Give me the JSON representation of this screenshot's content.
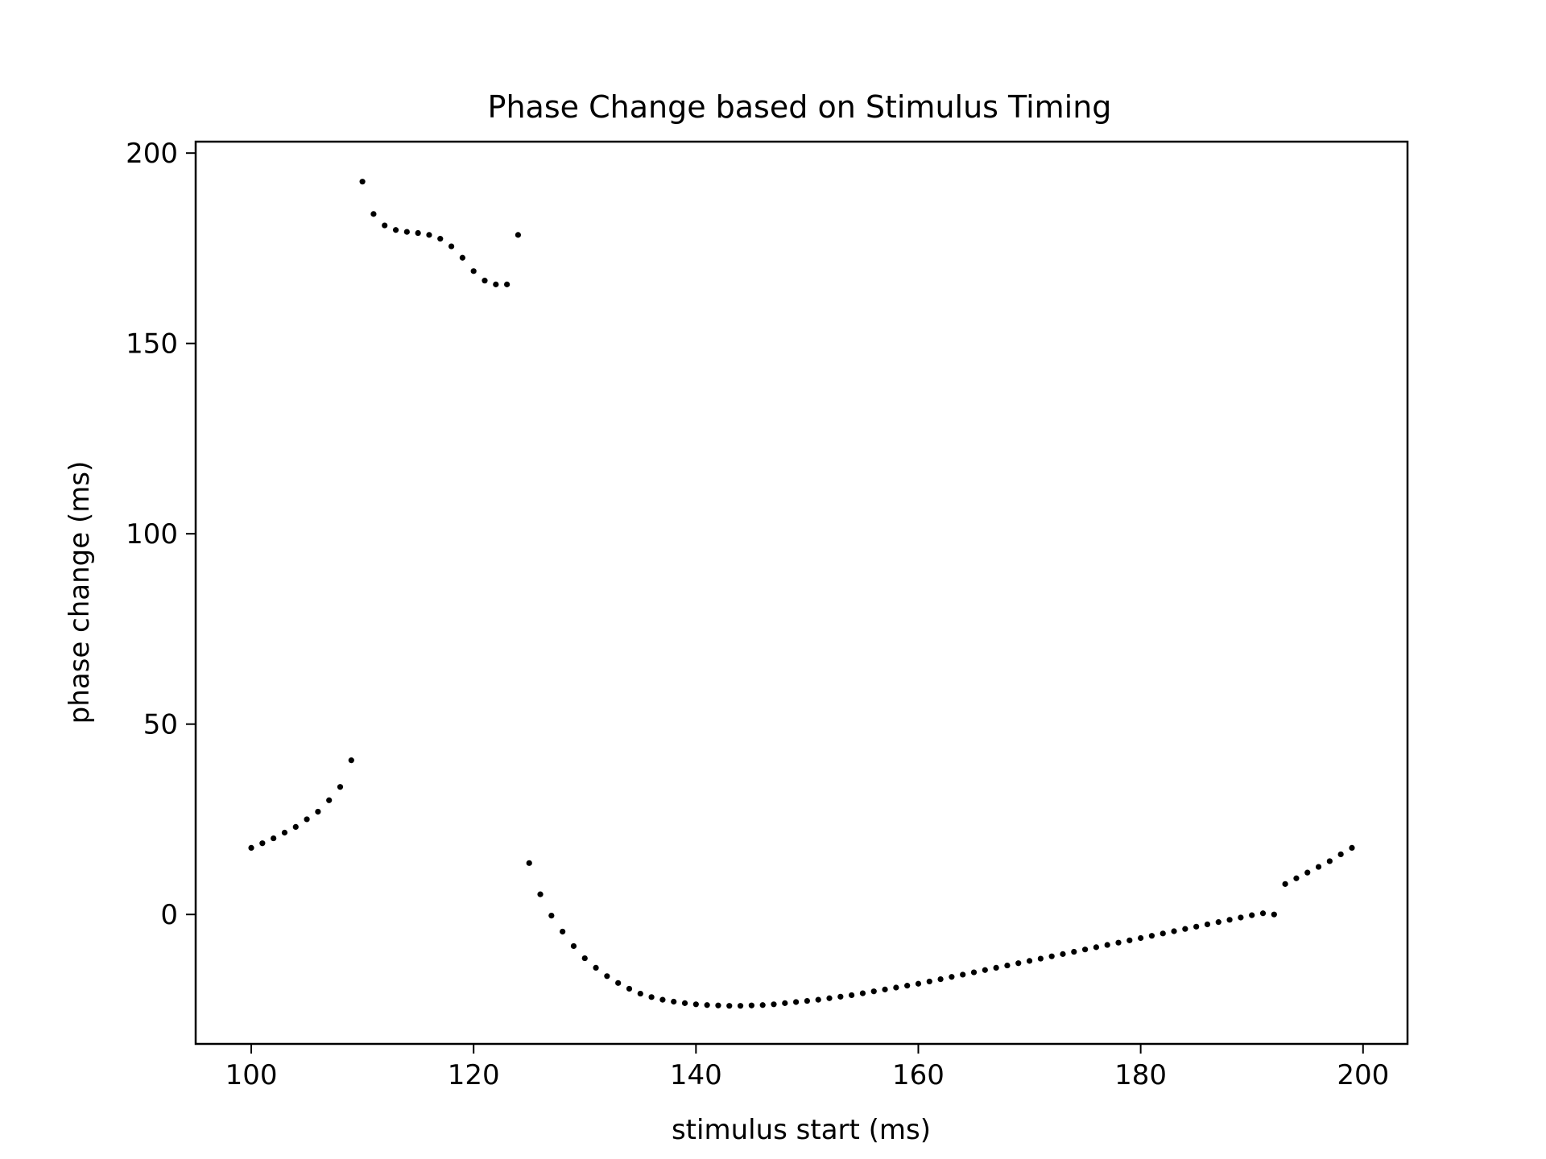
{
  "chart_data": {
    "type": "scatter",
    "title": "Phase Change based on Stimulus Timing",
    "xlabel": "stimulus start (ms)",
    "ylabel": "phase change (ms)",
    "xlim": [
      95,
      204
    ],
    "ylim": [
      -34,
      203
    ],
    "xticks": [
      100,
      120,
      140,
      160,
      180,
      200
    ],
    "yticks": [
      0,
      50,
      100,
      150,
      200
    ],
    "grid": false,
    "marker_color": "#000000",
    "x": [
      100,
      101,
      102,
      103,
      104,
      105,
      106,
      107,
      108,
      109,
      110,
      111,
      112,
      113,
      114,
      115,
      116,
      117,
      118,
      119,
      120,
      121,
      122,
      123,
      124,
      125,
      126,
      127,
      128,
      129,
      130,
      131,
      132,
      133,
      134,
      135,
      136,
      137,
      138,
      139,
      140,
      141,
      142,
      143,
      144,
      145,
      146,
      147,
      148,
      149,
      150,
      151,
      152,
      153,
      154,
      155,
      156,
      157,
      158,
      159,
      160,
      161,
      162,
      163,
      164,
      165,
      166,
      167,
      168,
      169,
      170,
      171,
      172,
      173,
      174,
      175,
      176,
      177,
      178,
      179,
      180,
      181,
      182,
      183,
      184,
      185,
      186,
      187,
      188,
      189,
      190,
      191,
      192,
      193,
      194,
      195,
      196,
      197,
      198,
      199
    ],
    "y": [
      17.5,
      18.7,
      20,
      21.5,
      23,
      25,
      27,
      30,
      33.5,
      40.5,
      192.5,
      184,
      181,
      179.8,
      179.3,
      179,
      178.5,
      177.5,
      175.5,
      172.5,
      169,
      166.5,
      165.5,
      165.5,
      178.5,
      13.5,
      5.3,
      -0.3,
      -4.5,
      -8.3,
      -11.5,
      -14,
      -16.2,
      -18,
      -19.5,
      -20.8,
      -21.7,
      -22.4,
      -22.9,
      -23.3,
      -23.6,
      -23.8,
      -23.9,
      -24,
      -24,
      -23.9,
      -23.8,
      -23.6,
      -23.3,
      -23,
      -22.7,
      -22.4,
      -22,
      -21.6,
      -21.2,
      -20.7,
      -20.2,
      -19.7,
      -19.2,
      -18.7,
      -18.2,
      -17.6,
      -17,
      -16.4,
      -15.8,
      -15.2,
      -14.6,
      -14,
      -13.4,
      -12.8,
      -12.2,
      -11.6,
      -11,
      -10.4,
      -9.8,
      -9.2,
      -8.6,
      -8,
      -7.4,
      -6.8,
      -6.2,
      -5.6,
      -5,
      -4.4,
      -3.8,
      -3.2,
      -2.6,
      -2,
      -1.4,
      -0.8,
      -0.2,
      0.3,
      0,
      8,
      9.5,
      11,
      12.5,
      14,
      15.8,
      17.5
    ]
  }
}
